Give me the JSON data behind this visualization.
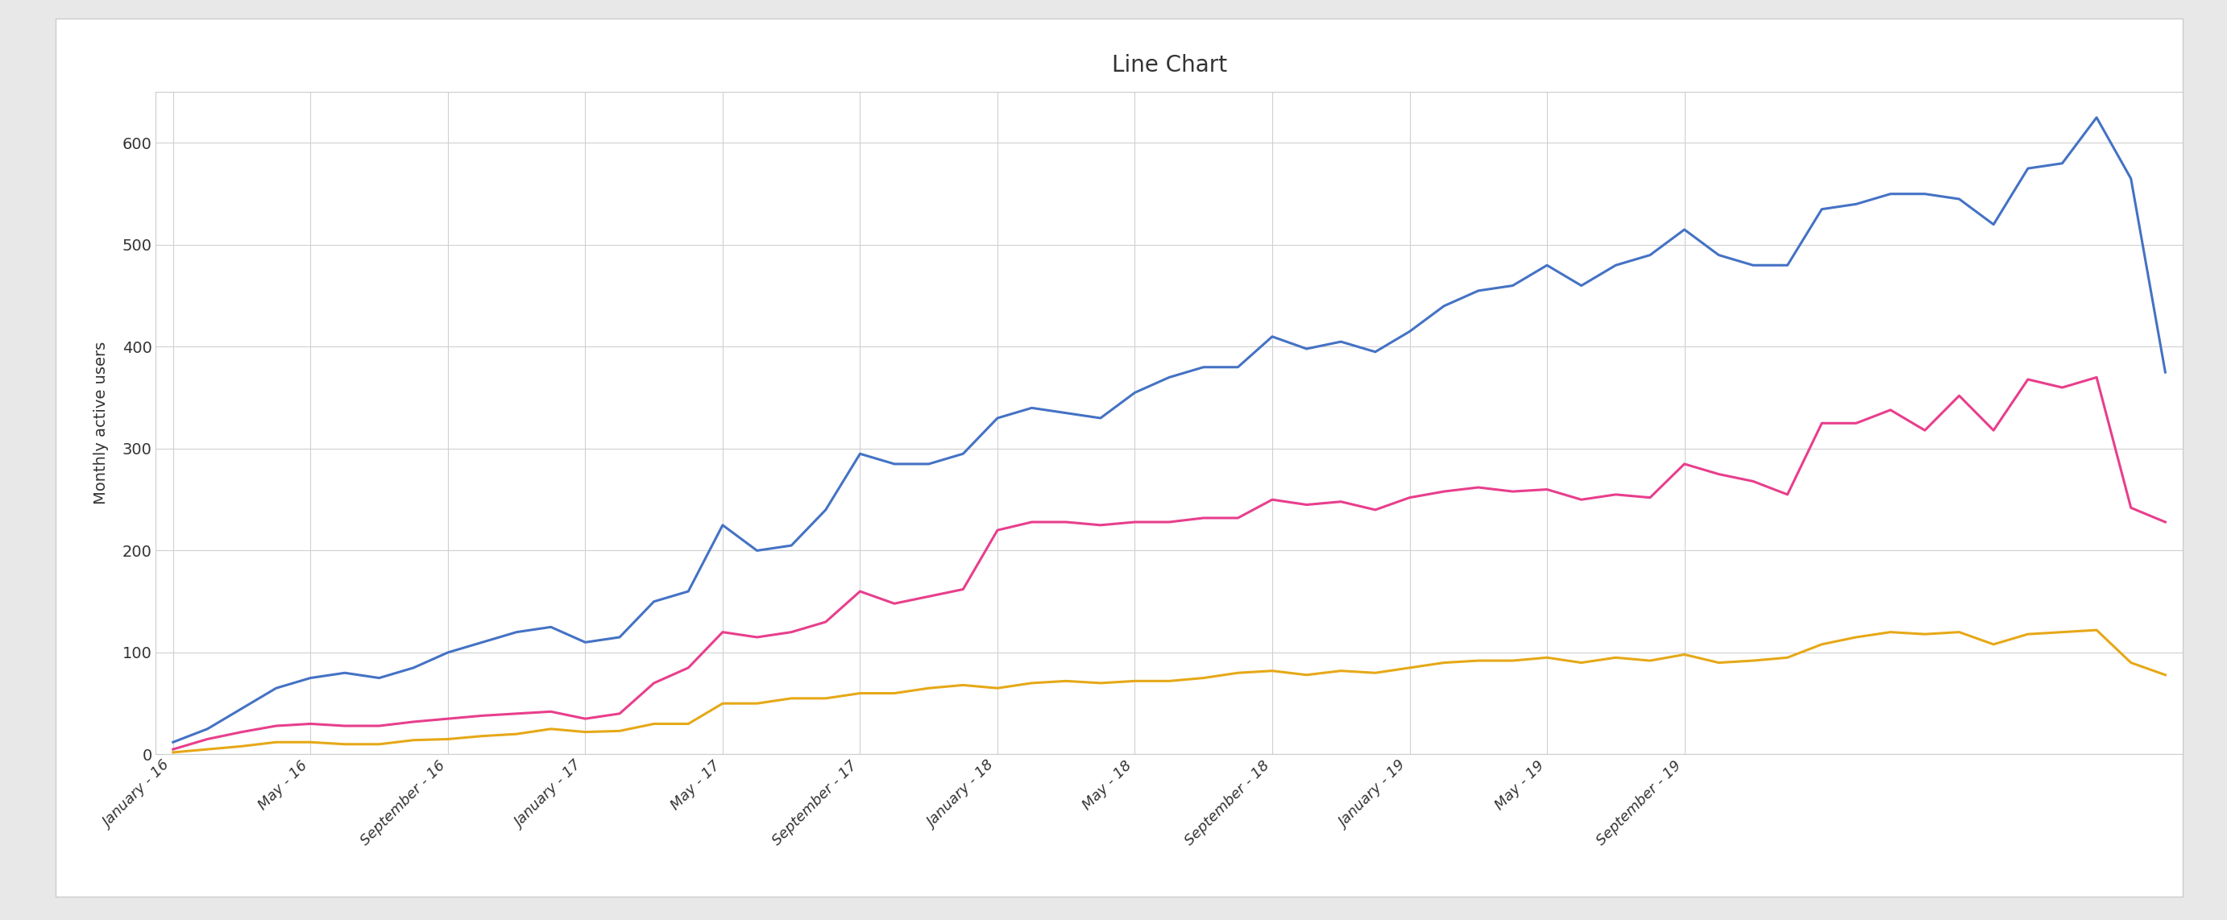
{
  "title": "Line Chart",
  "ylabel": "Monthly active users",
  "background_color": "#ffffff",
  "outer_bg_color": "#e8e8e8",
  "grid_color": "#d0d0d0",
  "title_fontsize": 20,
  "axis_label_fontsize": 14,
  "tick_fontsize": 13,
  "legend_fontsize": 14,
  "line_width": 2.2,
  "east_coast_color": "#4472c4",
  "midwest_color": "#e6a817",
  "west_coast_color": "#e83e8c",
  "east_coast": [
    12,
    25,
    45,
    65,
    75,
    80,
    75,
    85,
    100,
    110,
    120,
    125,
    110,
    115,
    150,
    160,
    225,
    200,
    205,
    240,
    295,
    285,
    285,
    295,
    330,
    340,
    335,
    330,
    355,
    370,
    380,
    380,
    410,
    398,
    405,
    395,
    415,
    440,
    455,
    460,
    480,
    460,
    480,
    490,
    515,
    490,
    480,
    480,
    535,
    540,
    550,
    550,
    545,
    520,
    575,
    580,
    625,
    565,
    375
  ],
  "midwest": [
    2,
    5,
    8,
    12,
    12,
    10,
    10,
    14,
    15,
    18,
    20,
    25,
    22,
    23,
    30,
    30,
    50,
    50,
    55,
    55,
    60,
    60,
    65,
    68,
    65,
    70,
    72,
    70,
    72,
    72,
    75,
    80,
    82,
    78,
    82,
    80,
    85,
    90,
    92,
    92,
    95,
    90,
    95,
    92,
    98,
    90,
    92,
    95,
    108,
    115,
    120,
    118,
    120,
    108,
    118,
    120,
    122,
    90,
    78
  ],
  "west_coast": [
    5,
    15,
    22,
    28,
    30,
    28,
    28,
    32,
    35,
    38,
    40,
    42,
    35,
    40,
    70,
    85,
    120,
    115,
    120,
    130,
    160,
    148,
    155,
    162,
    220,
    228,
    228,
    225,
    228,
    228,
    232,
    232,
    250,
    245,
    248,
    240,
    252,
    258,
    262,
    258,
    260,
    250,
    255,
    252,
    285,
    275,
    268,
    255,
    325,
    325,
    338,
    318,
    352,
    318,
    368,
    360,
    370,
    242,
    228
  ],
  "x_tick_labels": [
    "January - 16",
    "May - 16",
    "September - 16",
    "January - 17",
    "May - 17",
    "September - 17",
    "January - 18",
    "May - 18",
    "September - 18",
    "January - 19",
    "May - 19",
    "September - 19"
  ],
  "x_tick_positions": [
    0,
    4,
    8,
    12,
    16,
    20,
    24,
    28,
    32,
    36,
    40,
    44
  ],
  "ylim": [
    0,
    650
  ],
  "yticks": [
    0,
    100,
    200,
    300,
    400,
    500,
    600
  ]
}
